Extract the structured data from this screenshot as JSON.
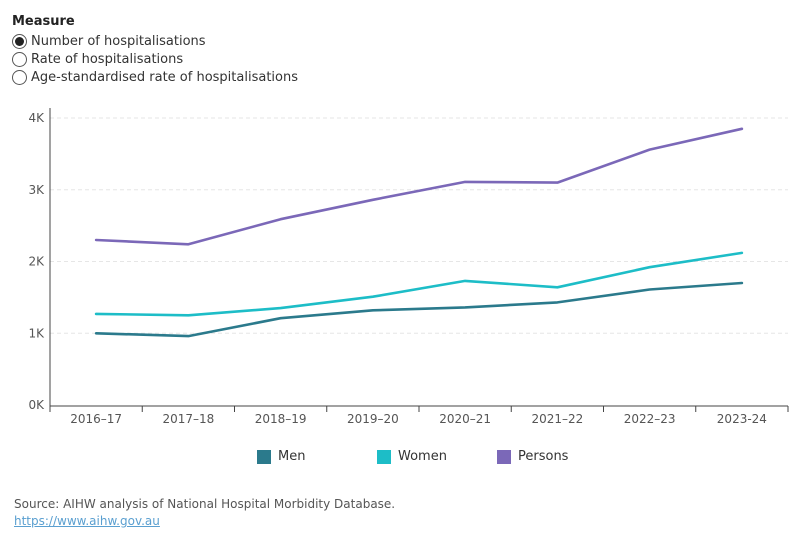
{
  "measure": {
    "title": "Measure",
    "options": [
      {
        "label": "Number of hospitalisations",
        "selected": true
      },
      {
        "label": "Rate of hospitalisations",
        "selected": false
      },
      {
        "label": "Age-standardised rate of hospitalisations",
        "selected": false
      }
    ]
  },
  "chart_data": {
    "type": "line",
    "categories": [
      "2016–17",
      "2017–18",
      "2018–19",
      "2019–20",
      "2020–21",
      "2021–22",
      "2022–23",
      "2023-24"
    ],
    "ylim": [
      0,
      4000
    ],
    "yticks": [
      0,
      1000,
      2000,
      3000,
      4000
    ],
    "ytick_labels": [
      "0K",
      "1K",
      "2K",
      "3K",
      "4K"
    ],
    "grid": true,
    "legend_position": "bottom",
    "series": [
      {
        "name": "Men",
        "color": "#2b7a8c",
        "values": [
          1000,
          960,
          1210,
          1320,
          1360,
          1430,
          1610,
          1700
        ]
      },
      {
        "name": "Women",
        "color": "#1dbdc7",
        "values": [
          1270,
          1250,
          1350,
          1510,
          1730,
          1640,
          1920,
          2120
        ]
      },
      {
        "name": "Persons",
        "color": "#7b68b8",
        "values": [
          2300,
          2240,
          2590,
          2860,
          3110,
          3100,
          3560,
          3850
        ]
      }
    ]
  },
  "footer": {
    "source": "Source: AIHW analysis of National Hospital Morbidity Database.",
    "link": "https://www.aihw.gov.au"
  }
}
